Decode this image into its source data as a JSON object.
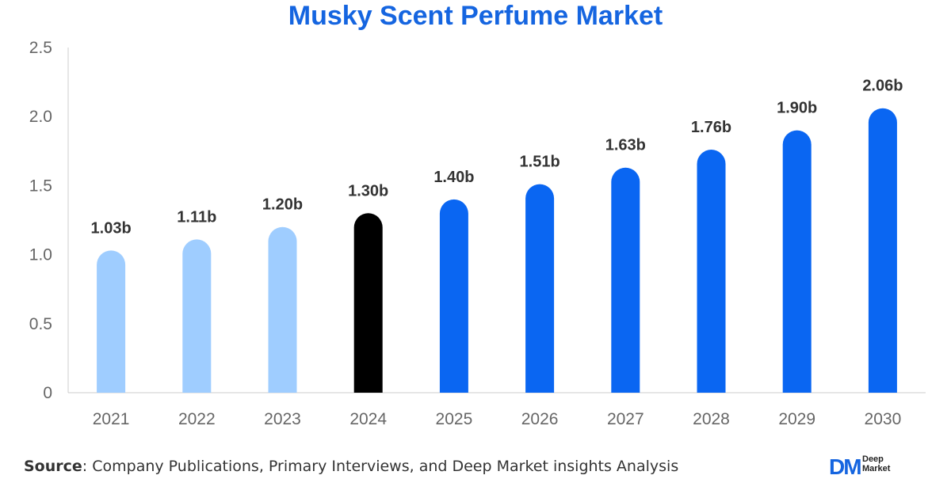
{
  "chart_data": {
    "type": "bar",
    "title": "Musky Scent Perfume Market",
    "categories": [
      "2021",
      "2022",
      "2023",
      "2024",
      "2025",
      "2026",
      "2027",
      "2028",
      "2029",
      "2030"
    ],
    "values": [
      1.03,
      1.11,
      1.2,
      1.3,
      1.4,
      1.51,
      1.63,
      1.76,
      1.9,
      2.06
    ],
    "data_labels": [
      "1.03b",
      "1.11b",
      "1.20b",
      "1.30b",
      "1.40b",
      "1.51b",
      "1.63b",
      "1.76b",
      "1.90b",
      "2.06b"
    ],
    "bar_colors": [
      "#9fcdff",
      "#9fcdff",
      "#9fcdff",
      "#000000",
      "#0a66f2",
      "#0a66f2",
      "#0a66f2",
      "#0a66f2",
      "#0a66f2",
      "#0a66f2"
    ],
    "yticks": [
      "0",
      "0.5",
      "1.0",
      "1.5",
      "2.0",
      "2.5"
    ],
    "ylim": [
      0,
      2.5
    ],
    "grid": false,
    "xlabel": "",
    "ylabel": ""
  },
  "footer": {
    "source_label": "Source",
    "source_text": ": Company Publications, Primary Interviews, and Deep Market insights Analysis"
  },
  "logo": {
    "mark": "DM",
    "line1": "Deep",
    "line2": "Market"
  },
  "colors": {
    "title": "#1565e0",
    "axis": "#cccccc"
  }
}
